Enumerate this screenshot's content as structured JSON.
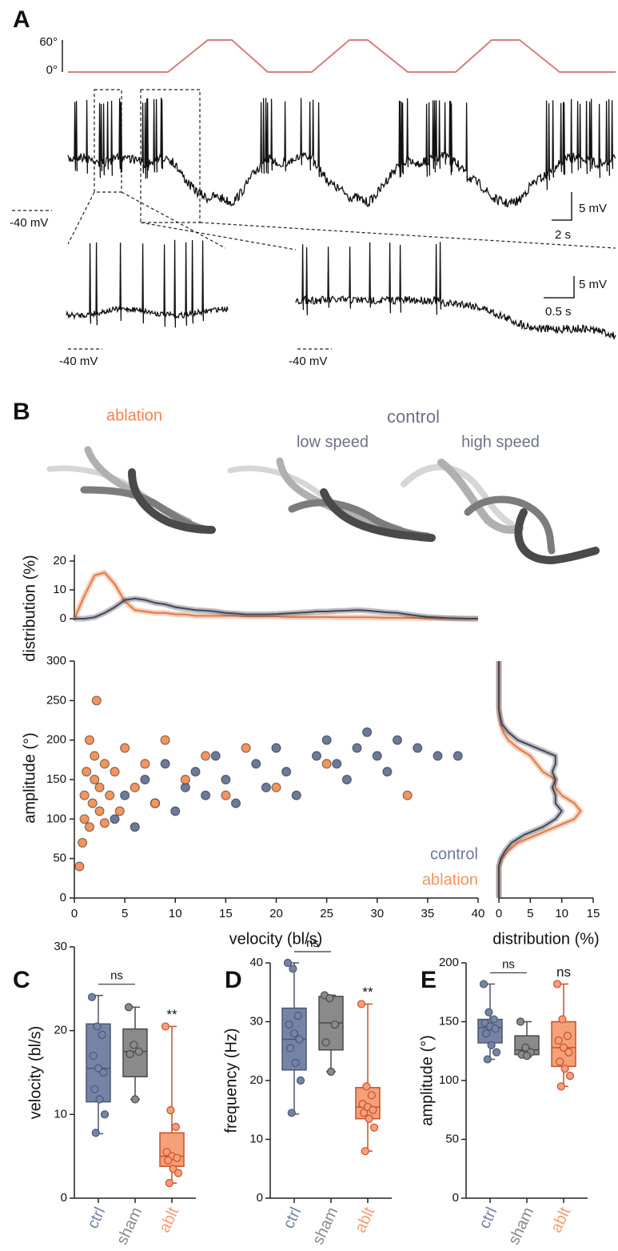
{
  "panel_labels": [
    "A",
    "B",
    "C",
    "D",
    "E"
  ],
  "panel_a": {
    "stimulus_ticks": [
      "60°",
      "0°"
    ],
    "baseline_labels": [
      "-40 mV",
      "-40 mV",
      "-40 mV"
    ],
    "scale_bars": [
      "5 mV",
      "2 s",
      "5 mV",
      "0.5 s"
    ]
  },
  "panel_b": {
    "group_labels": [
      "ablation",
      "control",
      "low speed",
      "high speed"
    ]
  },
  "chart_data": [
    {
      "type": "line",
      "ylabel": "distribution (%)",
      "x": [
        0,
        1,
        2,
        3,
        4,
        5,
        6,
        7,
        8,
        9,
        10,
        11,
        12,
        13,
        14,
        15,
        16,
        17,
        18,
        19,
        20,
        21,
        22,
        23,
        24,
        25,
        26,
        27,
        28,
        29,
        30,
        31,
        32,
        33,
        34,
        35,
        36,
        37,
        38,
        39,
        40
      ],
      "series": [
        {
          "color": "#e07a45",
          "values": [
            0,
            8,
            15,
            16,
            12,
            6,
            3,
            2.5,
            2,
            2,
            1.5,
            1.5,
            1,
            1,
            1,
            1,
            1,
            0.8,
            0.8,
            0.8,
            0.8,
            0.6,
            0.6,
            0.6,
            0.6,
            0.6,
            0.5,
            0.5,
            0.5,
            0.5,
            0.4,
            0.3,
            0.3,
            0.3,
            0.2,
            0.2,
            0.1,
            0.1,
            0,
            0,
            0
          ]
        },
        {
          "color": "#3f4656",
          "values": [
            0,
            0,
            0.5,
            2,
            4,
            6.5,
            7,
            6.5,
            5.5,
            5,
            4,
            3.5,
            3,
            2.8,
            2.5,
            2,
            1.8,
            1.5,
            1.5,
            1.5,
            1.6,
            1.8,
            2,
            2.2,
            2.5,
            2.5,
            2.7,
            2.8,
            3,
            2.8,
            2.5,
            2.2,
            2,
            1.5,
            1,
            0.6,
            0.4,
            0.2,
            0.1,
            0,
            0
          ]
        }
      ],
      "xlim": [
        0,
        40
      ],
      "ylim": [
        0,
        20
      ],
      "yticks": [
        0,
        10,
        20
      ]
    },
    {
      "type": "scatter",
      "xlabel": "velocity (bl/s)",
      "ylabel": "amplitude (°)",
      "series": [
        {
          "name": "control",
          "color": "#6b7a99",
          "x": [
            4,
            5,
            6,
            7,
            8,
            9,
            10,
            11,
            12,
            13,
            14,
            15,
            16,
            18,
            19,
            20,
            21,
            22,
            24,
            25,
            26,
            27,
            28,
            29,
            30,
            31,
            32,
            34,
            36,
            38
          ],
          "values": [
            100,
            130,
            90,
            150,
            120,
            170,
            110,
            140,
            160,
            130,
            180,
            150,
            120,
            170,
            140,
            190,
            160,
            130,
            180,
            200,
            170,
            150,
            190,
            210,
            180,
            160,
            200,
            190,
            180,
            180
          ]
        },
        {
          "name": "ablation",
          "color": "#f2955f",
          "x": [
            0.5,
            0.8,
            1,
            1,
            1.2,
            1.5,
            1.5,
            1.8,
            2,
            2,
            2.2,
            2.5,
            2.5,
            3,
            3,
            3.5,
            4,
            4.5,
            5,
            6,
            7,
            8,
            9,
            11,
            13,
            15,
            17,
            20,
            25,
            33
          ],
          "values": [
            40,
            70,
            100,
            130,
            160,
            90,
            200,
            120,
            150,
            180,
            250,
            110,
            140,
            170,
            95,
            130,
            160,
            110,
            190,
            140,
            170,
            120,
            200,
            150,
            180,
            130,
            190,
            140,
            170,
            130
          ]
        }
      ],
      "xlim": [
        0,
        40
      ],
      "xticks": [
        0,
        5,
        10,
        15,
        20,
        25,
        30,
        35,
        40
      ],
      "ylim": [
        0,
        300
      ],
      "yticks": [
        0,
        50,
        100,
        150,
        200,
        250,
        300
      ]
    },
    {
      "type": "line",
      "orientation": "horizontal",
      "xlabel": "distribution (%)",
      "y": [
        0,
        10,
        20,
        30,
        40,
        50,
        60,
        70,
        80,
        90,
        100,
        110,
        120,
        130,
        140,
        150,
        160,
        170,
        180,
        190,
        200,
        210,
        220,
        230,
        240,
        250,
        260,
        270,
        280,
        290,
        300
      ],
      "series": [
        {
          "color": "#e07a45",
          "values": [
            0,
            0,
            0,
            0,
            0,
            0.5,
            1.5,
            3,
            6,
            9,
            12,
            13,
            12,
            10,
            9,
            9,
            7,
            6,
            5,
            3,
            1.5,
            0.7,
            0.3,
            0.1,
            0,
            0,
            0,
            0,
            0,
            0,
            0
          ]
        },
        {
          "color": "#3f4656",
          "values": [
            0,
            0,
            0,
            0,
            0,
            0.3,
            1,
            2,
            4,
            7,
            9,
            10,
            9,
            9,
            8.5,
            9,
            8.5,
            9,
            9,
            6,
            3,
            1.5,
            0.5,
            0.2,
            0,
            0,
            0,
            0,
            0,
            0,
            0
          ]
        }
      ],
      "xlim": [
        0,
        15
      ],
      "xticks": [
        0,
        5,
        10,
        15
      ],
      "ylim": [
        0,
        300
      ]
    },
    {
      "type": "box",
      "ylabel": "velocity (bl/s)",
      "categories": [
        "ctrl",
        "sham",
        "ablt"
      ],
      "colors": [
        "#7584a6",
        "#8a8a8a",
        "#f4a079"
      ],
      "edge_colors": [
        "#4c5670",
        "#4a4a4a",
        "#c8502a"
      ],
      "boxes": [
        {
          "min": 7.7,
          "q1": 11.5,
          "median": 15.5,
          "q3": 20.8,
          "max": 24.2,
          "points": [
            24,
            20.5,
            19.5,
            17,
            15.5,
            15,
            13,
            11.8,
            10,
            7.8
          ]
        },
        {
          "min": 11.8,
          "q1": 14.5,
          "median": 17.5,
          "q3": 20.2,
          "max": 22.8,
          "points": [
            22.8,
            18.3,
            17.5,
            17.2,
            11.8
          ]
        },
        {
          "min": 1.8,
          "q1": 3.8,
          "median": 5,
          "q3": 7.8,
          "max": 20.5,
          "points": [
            20.5,
            10.5,
            8.5,
            5.5,
            5,
            4.8,
            4.5,
            3.5,
            3,
            1.8
          ]
        }
      ],
      "annotations": [
        "ns",
        "**"
      ],
      "ylim": [
        0,
        30
      ],
      "yticks": [
        0,
        10,
        20,
        30
      ]
    },
    {
      "type": "box",
      "ylabel": "frequency (Hz)",
      "categories": [
        "ctrl",
        "sham",
        "ablt"
      ],
      "colors": [
        "#7584a6",
        "#8a8a8a",
        "#f4a079"
      ],
      "edge_colors": [
        "#4c5670",
        "#4a4a4a",
        "#c8502a"
      ],
      "boxes": [
        {
          "min": 14.3,
          "q1": 21.8,
          "median": 27,
          "q3": 32.3,
          "max": 40,
          "points": [
            40,
            39,
            31,
            29.5,
            28,
            27,
            25.5,
            23,
            20,
            14.5
          ]
        },
        {
          "min": 21.5,
          "q1": 25.2,
          "median": 29.8,
          "q3": 34.3,
          "max": 34.5,
          "points": [
            34.5,
            34,
            29.5,
            26.5,
            21.5
          ]
        },
        {
          "min": 8,
          "q1": 13.5,
          "median": 15.5,
          "q3": 18.8,
          "max": 33,
          "points": [
            33,
            19,
            17.5,
            16,
            15.5,
            15,
            14.5,
            13.5,
            12,
            8
          ]
        }
      ],
      "annotations": [
        "ns",
        "**"
      ],
      "ylim": [
        0,
        40
      ],
      "yticks": [
        0,
        10,
        20,
        30,
        40
      ]
    },
    {
      "type": "box",
      "ylabel": "amplitude (°)",
      "categories": [
        "ctrl",
        "sham",
        "ablt"
      ],
      "colors": [
        "#7584a6",
        "#8a8a8a",
        "#f4a079"
      ],
      "edge_colors": [
        "#4c5670",
        "#4a4a4a",
        "#c8502a"
      ],
      "boxes": [
        {
          "min": 118,
          "q1": 132,
          "median": 145,
          "q3": 152,
          "max": 182,
          "points": [
            182,
            158,
            152,
            149,
            146,
            144,
            140,
            130,
            124,
            118
          ]
        },
        {
          "min": 120,
          "q1": 122,
          "median": 126,
          "q3": 138,
          "max": 150,
          "points": [
            150,
            128,
            124,
            122,
            121
          ]
        },
        {
          "min": 95,
          "q1": 112,
          "median": 128,
          "q3": 150,
          "max": 182,
          "points": [
            182,
            152,
            138,
            134,
            128,
            124,
            116,
            110,
            104,
            95
          ]
        }
      ],
      "annotations": [
        "ns",
        "ns"
      ],
      "ylim": [
        0,
        200
      ],
      "yticks": [
        0,
        50,
        100,
        150,
        200
      ]
    }
  ]
}
